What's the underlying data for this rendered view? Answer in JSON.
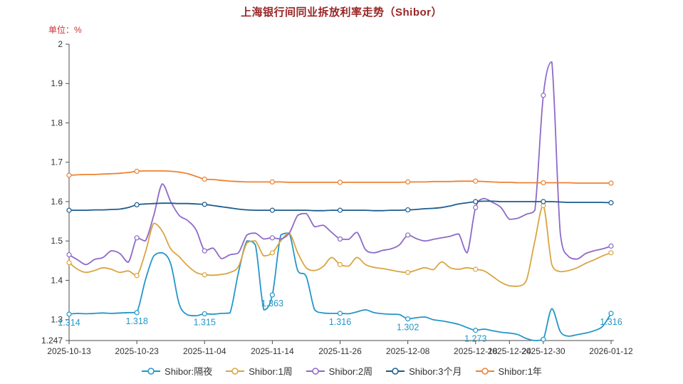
{
  "header": {
    "title": "上海银行间同业拆放利率走势（Shibor）",
    "unit_label": "单位：%"
  },
  "colors": {
    "title": "#992424",
    "unit": "#cc3333",
    "axis_text": "#333333",
    "axis_line": "#4d4d4d",
    "legend_text": "#333333",
    "point_label": "#2496c8",
    "background": "#ffffff"
  },
  "chart_data": {
    "type": "line",
    "title": "上海银行间同业拆放利率走势（Shibor）",
    "unit": "%",
    "smooth": true,
    "grid": false,
    "legend_position": "bottom",
    "ylim": [
      1.247,
      2.0
    ],
    "y_ticks": [
      "2",
      "1.9",
      "1.8",
      "1.7",
      "1.6",
      "1.5",
      "1.4",
      "1.3",
      "1.247"
    ],
    "x_point_count": 65,
    "marker_every": 8,
    "x_ticks": [
      {
        "index": 0,
        "label": "2025-10-13"
      },
      {
        "index": 8,
        "label": "2025-10-23"
      },
      {
        "index": 16,
        "label": "2025-11-04"
      },
      {
        "index": 24,
        "label": "2025-11-14"
      },
      {
        "index": 32,
        "label": "2025-11-26"
      },
      {
        "index": 40,
        "label": "2025-12-08"
      },
      {
        "index": 48,
        "label": "2025-12-18"
      },
      {
        "index": 52,
        "label": "2025-12-24"
      },
      {
        "index": 56,
        "label": "2025-12-30"
      },
      {
        "index": 64,
        "label": "2026-01-12"
      }
    ],
    "series": [
      {
        "key": "overnight",
        "name": "Shibor:隔夜",
        "color": "#2496c8",
        "values": [
          1.314,
          1.316,
          1.315,
          1.316,
          1.317,
          1.316,
          1.317,
          1.318,
          1.318,
          1.4,
          1.462,
          1.47,
          1.442,
          1.34,
          1.312,
          1.31,
          1.315,
          1.314,
          1.316,
          1.317,
          1.42,
          1.5,
          1.49,
          1.325,
          1.363,
          1.515,
          1.52,
          1.425,
          1.41,
          1.325,
          1.317,
          1.316,
          1.316,
          1.315,
          1.32,
          1.325,
          1.318,
          1.315,
          1.314,
          1.313,
          1.302,
          1.305,
          1.307,
          1.3,
          1.297,
          1.293,
          1.288,
          1.28,
          1.273,
          1.276,
          1.272,
          1.268,
          1.266,
          1.262,
          1.252,
          1.247,
          1.25,
          1.328,
          1.27,
          1.258,
          1.262,
          1.266,
          1.272,
          1.283,
          1.316
        ]
      },
      {
        "key": "1w",
        "name": "Shibor:1周",
        "color": "#d9a544",
        "values": [
          1.445,
          1.428,
          1.42,
          1.425,
          1.432,
          1.428,
          1.42,
          1.424,
          1.412,
          1.47,
          1.545,
          1.525,
          1.48,
          1.46,
          1.437,
          1.42,
          1.414,
          1.413,
          1.415,
          1.42,
          1.435,
          1.495,
          1.5,
          1.462,
          1.47,
          1.5,
          1.52,
          1.47,
          1.432,
          1.425,
          1.435,
          1.458,
          1.44,
          1.436,
          1.458,
          1.44,
          1.433,
          1.43,
          1.426,
          1.422,
          1.42,
          1.426,
          1.432,
          1.427,
          1.447,
          1.432,
          1.428,
          1.432,
          1.428,
          1.424,
          1.41,
          1.395,
          1.386,
          1.385,
          1.4,
          1.5,
          1.59,
          1.44,
          1.422,
          1.425,
          1.432,
          1.443,
          1.452,
          1.462,
          1.47
        ]
      },
      {
        "key": "2w",
        "name": "Shibor:2周",
        "color": "#8e6ac8",
        "values": [
          1.465,
          1.452,
          1.44,
          1.453,
          1.458,
          1.475,
          1.468,
          1.446,
          1.508,
          1.5,
          1.565,
          1.645,
          1.6,
          1.565,
          1.552,
          1.528,
          1.475,
          1.482,
          1.455,
          1.465,
          1.47,
          1.515,
          1.52,
          1.505,
          1.508,
          1.505,
          1.52,
          1.565,
          1.57,
          1.536,
          1.54,
          1.522,
          1.505,
          1.504,
          1.522,
          1.478,
          1.47,
          1.476,
          1.48,
          1.49,
          1.515,
          1.506,
          1.5,
          1.504,
          1.508,
          1.512,
          1.518,
          1.47,
          1.585,
          1.608,
          1.598,
          1.585,
          1.555,
          1.558,
          1.568,
          1.578,
          1.87,
          1.955,
          1.52,
          1.46,
          1.454,
          1.468,
          1.475,
          1.48,
          1.487
        ]
      },
      {
        "key": "3m",
        "name": "Shibor:3个月",
        "color": "#1d5c8e",
        "values": [
          1.578,
          1.578,
          1.578,
          1.579,
          1.579,
          1.58,
          1.581,
          1.585,
          1.592,
          1.594,
          1.595,
          1.596,
          1.596,
          1.595,
          1.595,
          1.594,
          1.593,
          1.59,
          1.587,
          1.584,
          1.581,
          1.579,
          1.578,
          1.578,
          1.578,
          1.578,
          1.578,
          1.578,
          1.578,
          1.577,
          1.577,
          1.578,
          1.578,
          1.578,
          1.578,
          1.578,
          1.577,
          1.577,
          1.578,
          1.578,
          1.579,
          1.58,
          1.582,
          1.583,
          1.585,
          1.589,
          1.594,
          1.597,
          1.6,
          1.601,
          1.601,
          1.6,
          1.6,
          1.6,
          1.6,
          1.6,
          1.6,
          1.6,
          1.599,
          1.598,
          1.598,
          1.598,
          1.598,
          1.598,
          1.597
        ]
      },
      {
        "key": "1y",
        "name": "Shibor:1年",
        "color": "#ee8233",
        "values": [
          1.667,
          1.668,
          1.669,
          1.669,
          1.67,
          1.671,
          1.672,
          1.674,
          1.677,
          1.678,
          1.678,
          1.678,
          1.677,
          1.675,
          1.671,
          1.664,
          1.657,
          1.656,
          1.654,
          1.652,
          1.651,
          1.65,
          1.65,
          1.65,
          1.65,
          1.65,
          1.649,
          1.649,
          1.649,
          1.649,
          1.649,
          1.649,
          1.649,
          1.649,
          1.649,
          1.649,
          1.649,
          1.649,
          1.649,
          1.649,
          1.65,
          1.65,
          1.65,
          1.651,
          1.651,
          1.651,
          1.652,
          1.652,
          1.652,
          1.651,
          1.65,
          1.649,
          1.649,
          1.648,
          1.648,
          1.648,
          1.648,
          1.648,
          1.648,
          1.648,
          1.647,
          1.647,
          1.647,
          1.647,
          1.647
        ]
      }
    ],
    "point_labels": [
      {
        "series": "Shibor:隔夜",
        "index": 0,
        "label": "1.314"
      },
      {
        "series": "Shibor:隔夜",
        "index": 8,
        "label": "1.318"
      },
      {
        "series": "Shibor:隔夜",
        "index": 16,
        "label": "1.315"
      },
      {
        "series": "Shibor:隔夜",
        "index": 24,
        "label": "1.363"
      },
      {
        "series": "Shibor:隔夜",
        "index": 32,
        "label": "1.316"
      },
      {
        "series": "Shibor:隔夜",
        "index": 40,
        "label": "1.302"
      },
      {
        "series": "Shibor:隔夜",
        "index": 48,
        "label": "1.273"
      },
      {
        "series": "Shibor:隔夜",
        "index": 64,
        "label": "1.316"
      }
    ]
  },
  "legend": {
    "items": [
      {
        "label": "Shibor:隔夜"
      },
      {
        "label": "Shibor:1周"
      },
      {
        "label": "Shibor:2周"
      },
      {
        "label": "Shibor:3个月"
      },
      {
        "label": "Shibor:1年"
      }
    ]
  }
}
